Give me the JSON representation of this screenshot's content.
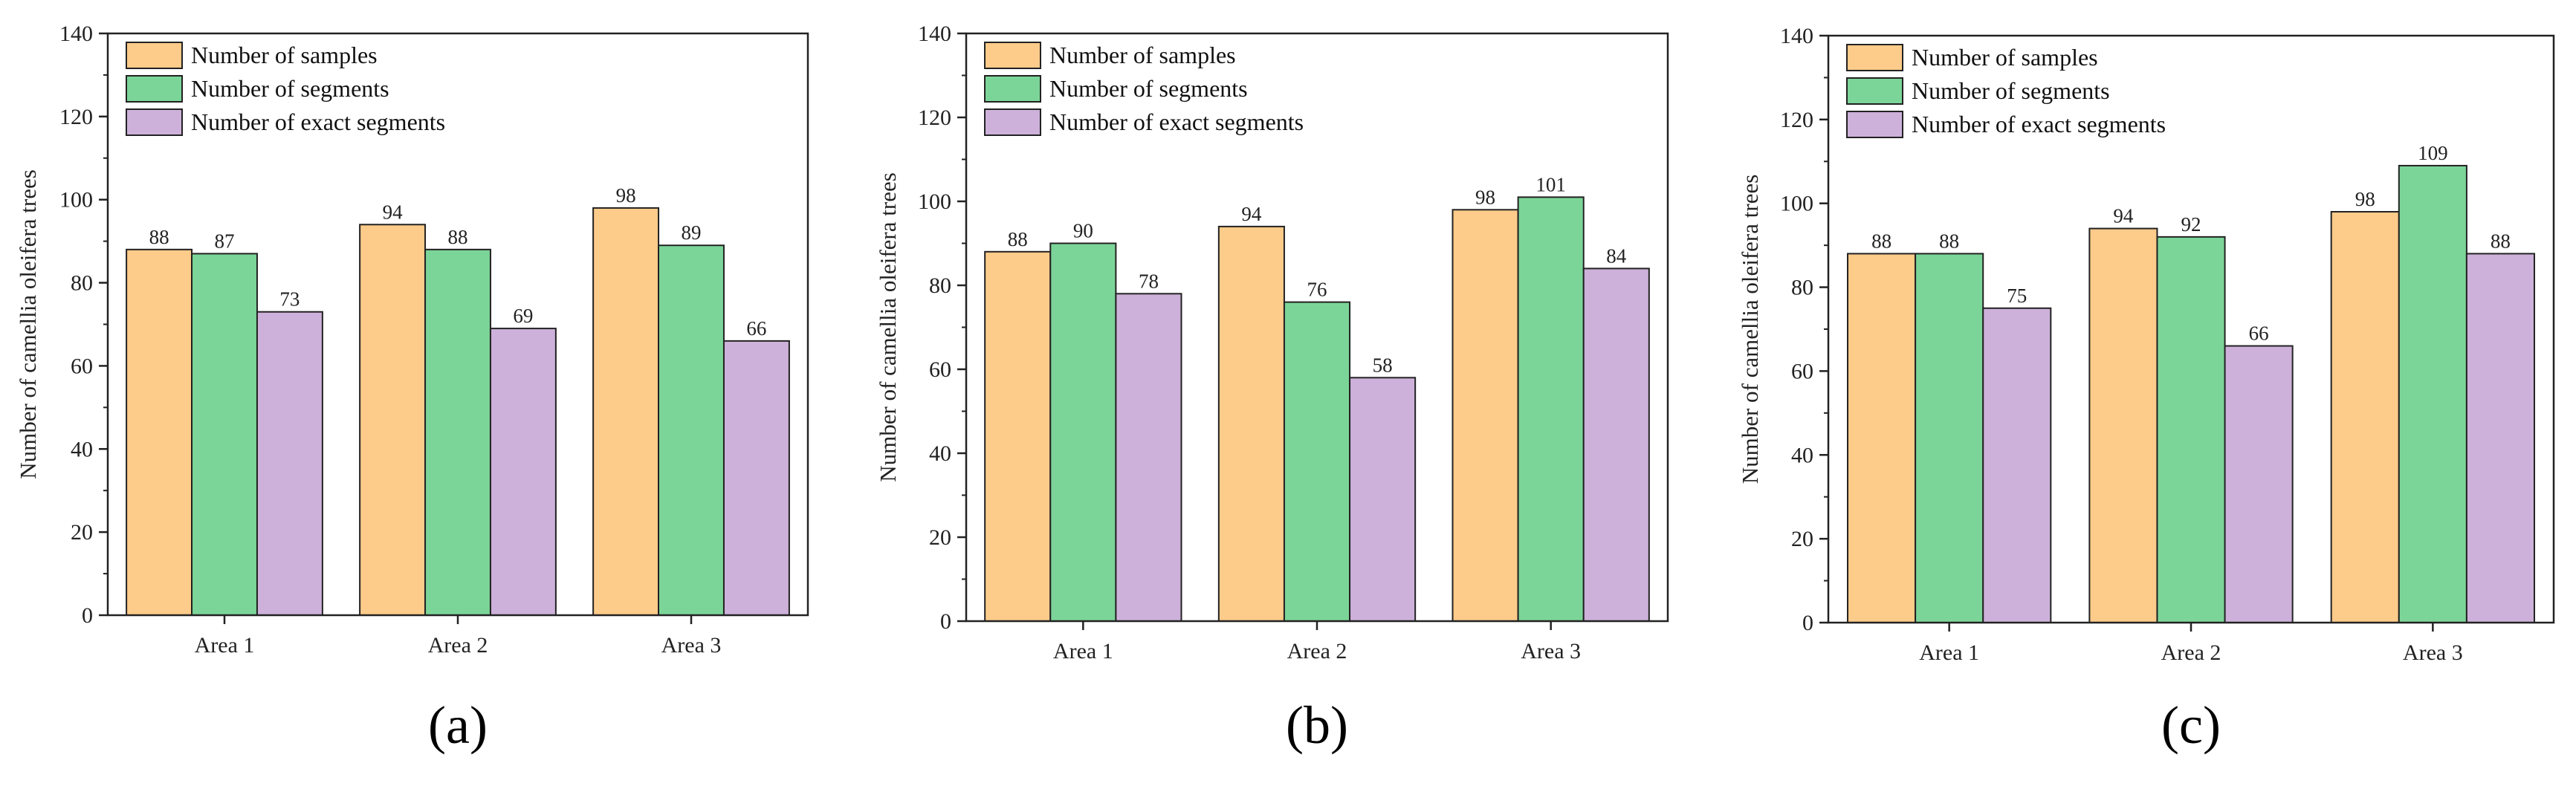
{
  "chart_data": [
    {
      "type": "bar",
      "panel_label": "(a)",
      "categories": [
        "Area 1",
        "Area 2",
        "Area 3"
      ],
      "series": [
        {
          "name": "Number of samples",
          "values": [
            88,
            94,
            98
          ],
          "color": "#FDCB8A"
        },
        {
          "name": "Number of segments",
          "values": [
            87,
            88,
            89
          ],
          "color": "#7CD598"
        },
        {
          "name": "Number of exact segments",
          "values": [
            73,
            69,
            66
          ],
          "color": "#CDB1DA"
        }
      ],
      "ylabel": "Number of camellia oleifera trees",
      "xlabel": "",
      "ylim": [
        0,
        140
      ],
      "yticks": [
        0,
        20,
        40,
        60,
        80,
        100,
        120,
        140
      ],
      "legend": "top-left"
    },
    {
      "type": "bar",
      "panel_label": "(b)",
      "categories": [
        "Area 1",
        "Area 2",
        "Area 3"
      ],
      "series": [
        {
          "name": "Number of samples",
          "values": [
            88,
            94,
            98
          ],
          "color": "#FDCB8A"
        },
        {
          "name": "Number of segments",
          "values": [
            90,
            76,
            101
          ],
          "color": "#7CD598"
        },
        {
          "name": "Number of exact segments",
          "values": [
            78,
            58,
            84
          ],
          "color": "#CDB1DA"
        }
      ],
      "ylabel": "Number of camellia oleifera trees",
      "xlabel": "",
      "ylim": [
        0,
        140
      ],
      "yticks": [
        0,
        20,
        40,
        60,
        80,
        100,
        120,
        140
      ],
      "legend": "top-left"
    },
    {
      "type": "bar",
      "panel_label": "(c)",
      "categories": [
        "Area 1",
        "Area 2",
        "Area 3"
      ],
      "series": [
        {
          "name": "Number of samples",
          "values": [
            88,
            94,
            98
          ],
          "color": "#FDCB8A"
        },
        {
          "name": "Number of segments",
          "values": [
            88,
            92,
            109
          ],
          "color": "#7CD598"
        },
        {
          "name": "Number of exact segments",
          "values": [
            75,
            66,
            88
          ],
          "color": "#CDB1DA"
        }
      ],
      "ylabel": "Number of camellia oleifera trees",
      "xlabel": "",
      "ylim": [
        0,
        140
      ],
      "yticks": [
        0,
        20,
        40,
        60,
        80,
        100,
        120,
        140
      ],
      "legend": "top-left"
    }
  ]
}
